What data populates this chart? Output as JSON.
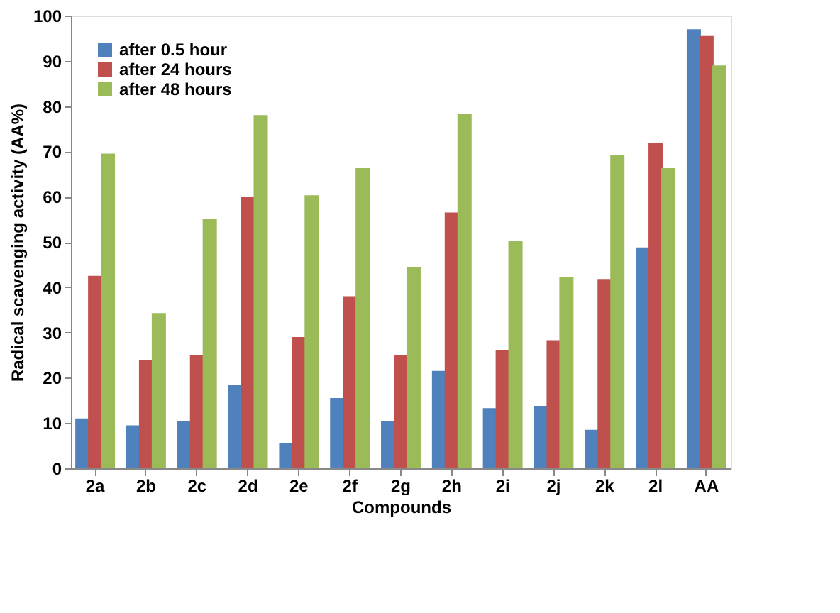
{
  "chart_data": {
    "type": "bar",
    "xlabel": "Compounds",
    "ylabel": "Radical scavenging activity (AA%)",
    "categories": [
      "2a",
      "2b",
      "2c",
      "2d",
      "2e",
      "2f",
      "2g",
      "2h",
      "2i",
      "2j",
      "2k",
      "2l",
      "AA"
    ],
    "series": [
      {
        "name": "after 0.5 hour",
        "color": "#4f81bd",
        "values": [
          11,
          9.5,
          10.5,
          18.5,
          5.5,
          15.5,
          10.5,
          21.5,
          13.3,
          13.8,
          8.5,
          48.8,
          97
        ]
      },
      {
        "name": "after 24 hours",
        "color": "#c0504d",
        "values": [
          42.5,
          24,
          25,
          60,
          29,
          38,
          25,
          56.5,
          26,
          28.3,
          41.8,
          71.8,
          95.5
        ]
      },
      {
        "name": "after 48 hours",
        "color": "#9bbb59",
        "values": [
          69.5,
          34.3,
          55,
          78,
          60.3,
          66.3,
          44.5,
          78.2,
          50.3,
          42.3,
          69.2,
          66.3,
          89
        ]
      }
    ],
    "ylim": [
      0,
      100
    ],
    "yticks": [
      0,
      10,
      20,
      30,
      40,
      50,
      60,
      70,
      80,
      90,
      100
    ],
    "grid": false,
    "legend": "top left"
  }
}
